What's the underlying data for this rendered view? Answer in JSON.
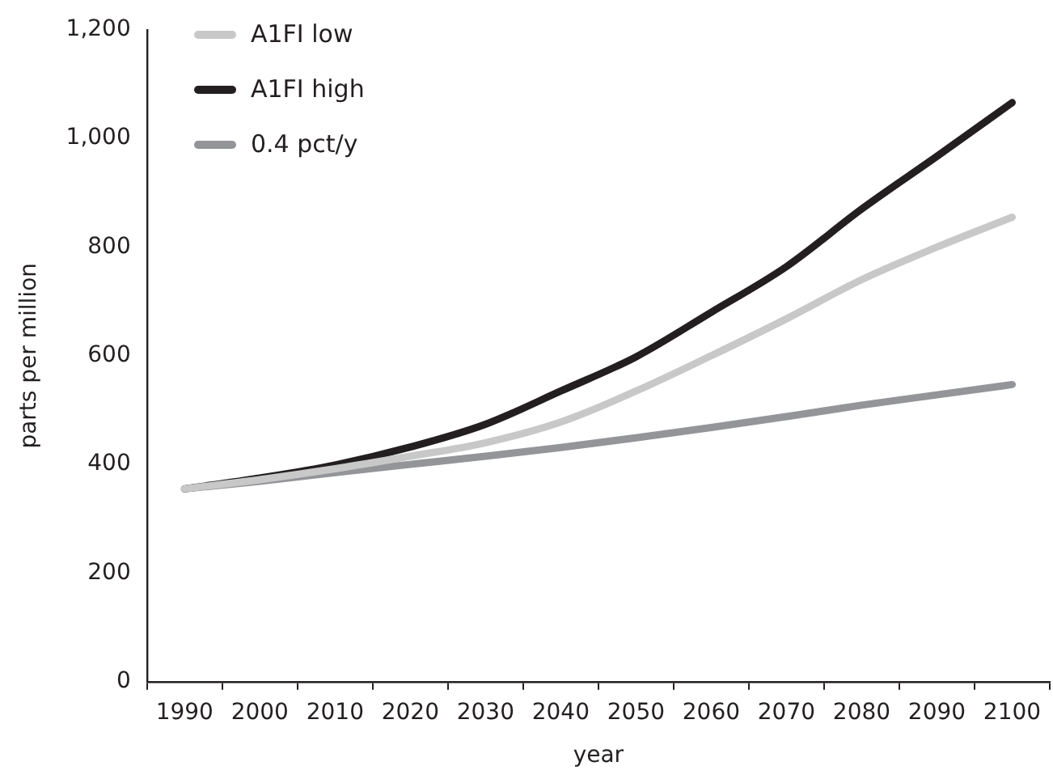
{
  "chart_data": {
    "type": "line",
    "xlabel": "year",
    "ylabel": "parts per million",
    "categories": [
      "1990",
      "2000",
      "2010",
      "2020",
      "2030",
      "2040",
      "2050",
      "2060",
      "2070",
      "2080",
      "2090",
      "2100"
    ],
    "series": [
      {
        "name": "A1FI low",
        "color": "#c8c8c8",
        "values": [
          355,
          372,
          392,
          415,
          440,
          478,
          535,
          600,
          668,
          740,
          800,
          855
        ]
      },
      {
        "name": "A1FI high",
        "color": "#231f20",
        "values": [
          355,
          375,
          399,
          432,
          474,
          535,
          598,
          680,
          764,
          870,
          967,
          1066
        ]
      },
      {
        "name": "0.4 pct/y",
        "color": "#939598",
        "values": [
          355,
          369,
          385,
          400,
          415,
          431,
          449,
          468,
          488,
          509,
          528,
          547
        ]
      }
    ],
    "ylim": [
      0,
      1200
    ],
    "yticks": [
      0,
      200,
      400,
      600,
      800,
      {
        "value": 1000,
        "label": "1,000"
      },
      {
        "value": 1200,
        "label": "1,200"
      }
    ],
    "grid": false,
    "legend": "top left",
    "marker": "none",
    "line_style": "solid"
  }
}
